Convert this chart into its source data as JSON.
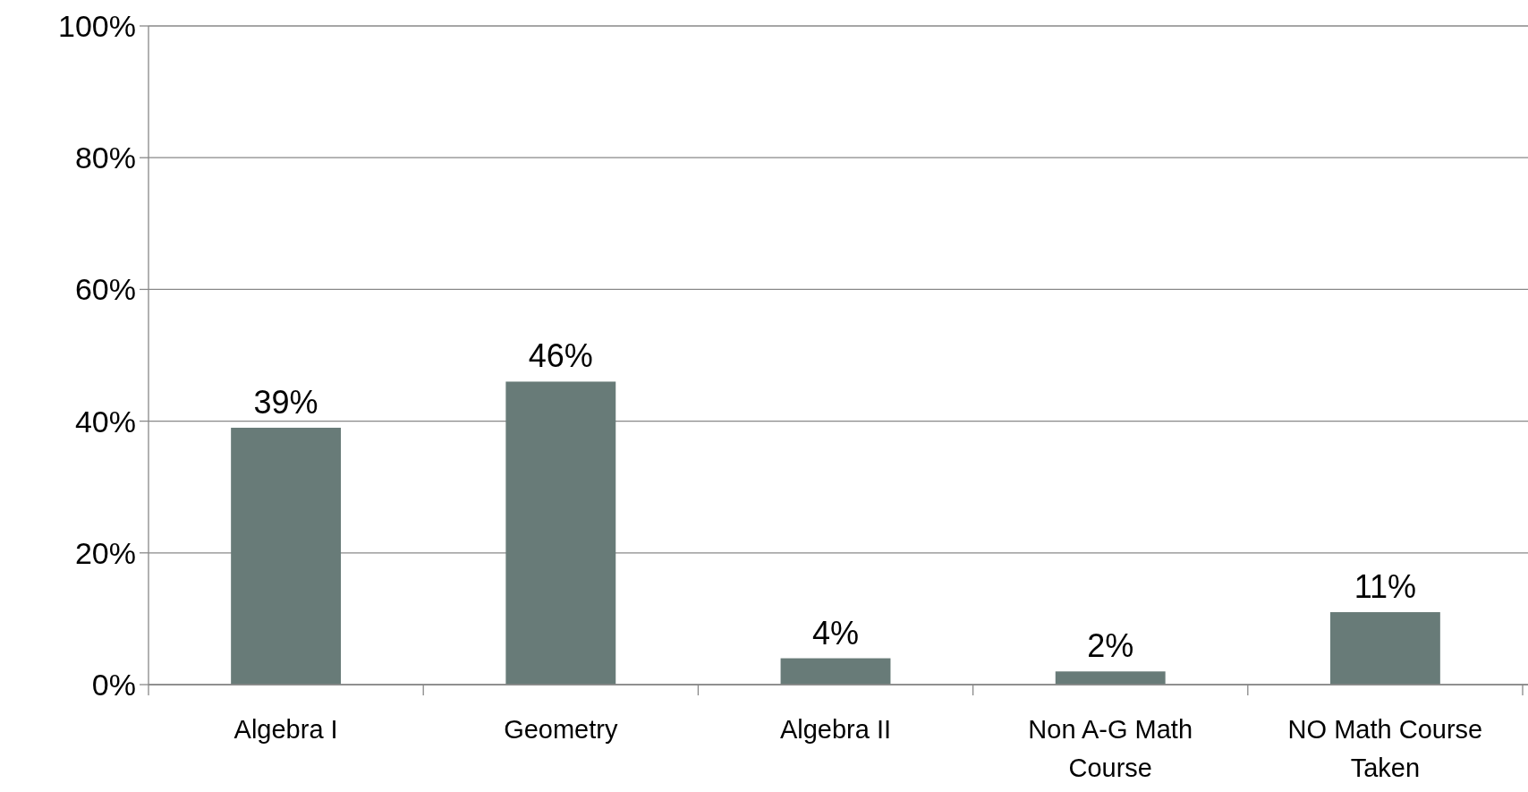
{
  "chart_data": {
    "type": "bar",
    "categories": [
      "Algebra I",
      "Geometry",
      "Algebra II",
      "Non A-G Math Course",
      "NO Math Course Taken"
    ],
    "values": [
      39,
      46,
      4,
      2,
      11
    ],
    "value_labels": [
      "39%",
      "46%",
      "4%",
      "2%",
      "11%"
    ],
    "color": "#687b78",
    "ylim": [
      0,
      100
    ],
    "yticks": [
      {
        "value": 0,
        "label": "0%"
      },
      {
        "value": 20,
        "label": "20%"
      },
      {
        "value": 40,
        "label": "40%"
      },
      {
        "value": 60,
        "label": "60%"
      },
      {
        "value": 80,
        "label": "80%"
      },
      {
        "value": 100,
        "label": "100%"
      }
    ],
    "grid": "y"
  }
}
